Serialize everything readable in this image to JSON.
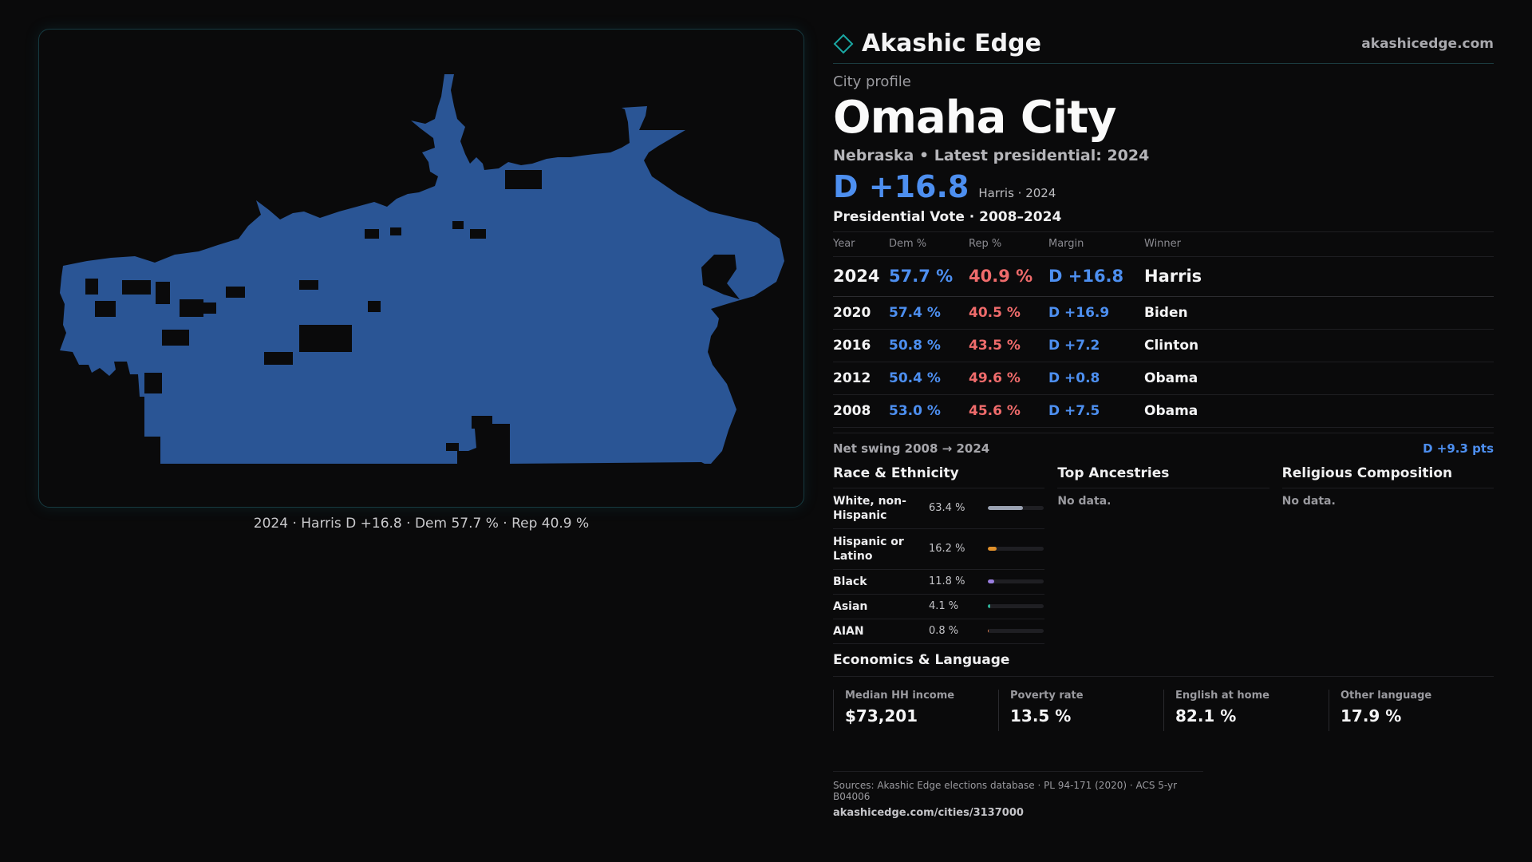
{
  "brand": {
    "name": "Akashic Edge",
    "url": "akashicedge.com",
    "accent": "#1aa7a3"
  },
  "map": {
    "fill": "#2a5595",
    "caption": "2024 · Harris D +16.8 · Dem 57.7 % · Rep 40.9 %"
  },
  "profile": {
    "kicker": "City profile",
    "city": "Omaha City",
    "subtitle": "Nebraska • Latest presidential: 2024",
    "margin": "D +16.8",
    "margin_note": "Harris · 2024"
  },
  "presidential": {
    "title": "Presidential Vote · 2008–2024",
    "headers": {
      "year": "Year",
      "dem": "Dem %",
      "rep": "Rep %",
      "margin": "Margin",
      "winner": "Winner"
    },
    "rows": [
      {
        "year": "2024",
        "dem": "57.7 %",
        "rep": "40.9 %",
        "margin": "D +16.8",
        "winner": "Harris"
      },
      {
        "year": "2020",
        "dem": "57.4 %",
        "rep": "40.5 %",
        "margin": "D +16.9",
        "winner": "Biden"
      },
      {
        "year": "2016",
        "dem": "50.8 %",
        "rep": "43.5 %",
        "margin": "D +7.2",
        "winner": "Clinton"
      },
      {
        "year": "2012",
        "dem": "50.4 %",
        "rep": "49.6 %",
        "margin": "D +0.8",
        "winner": "Obama"
      },
      {
        "year": "2008",
        "dem": "53.0 %",
        "rep": "45.6 %",
        "margin": "D +7.5",
        "winner": "Obama"
      }
    ],
    "swing_label": "Net swing 2008 → 2024",
    "swing_value": "D +9.3 pts"
  },
  "race": {
    "title": "Race & Ethnicity",
    "items": [
      {
        "name": "White, non-Hispanic",
        "pct": "63.4 %",
        "value": 63.4,
        "color": "#9aa2b2"
      },
      {
        "name": "Hispanic or Latino",
        "pct": "16.2 %",
        "value": 16.2,
        "color": "#e0902a"
      },
      {
        "name": "Black",
        "pct": "11.8 %",
        "value": 11.8,
        "color": "#9a7ee0"
      },
      {
        "name": "Asian",
        "pct": "4.1 %",
        "value": 4.1,
        "color": "#2fb39a"
      },
      {
        "name": "AIAN",
        "pct": "0.8 %",
        "value": 0.8,
        "color": "#e07a4a"
      }
    ]
  },
  "ancestries": {
    "title": "Top Ancestries",
    "empty": "No data."
  },
  "religion": {
    "title": "Religious Composition",
    "empty": "No data."
  },
  "economics": {
    "title": "Economics & Language",
    "cells": [
      {
        "label": "Median HH income",
        "value": "$73,201"
      },
      {
        "label": "Poverty rate",
        "value": "13.5 %"
      },
      {
        "label": "English at home",
        "value": "82.1 %"
      },
      {
        "label": "Other language",
        "value": "17.9 %"
      }
    ]
  },
  "sources": {
    "text": "Sources: Akashic Edge elections database · PL 94-171 (2020) · ACS 5-yr B04006",
    "url": "akashicedge.com/cities/3137000"
  }
}
